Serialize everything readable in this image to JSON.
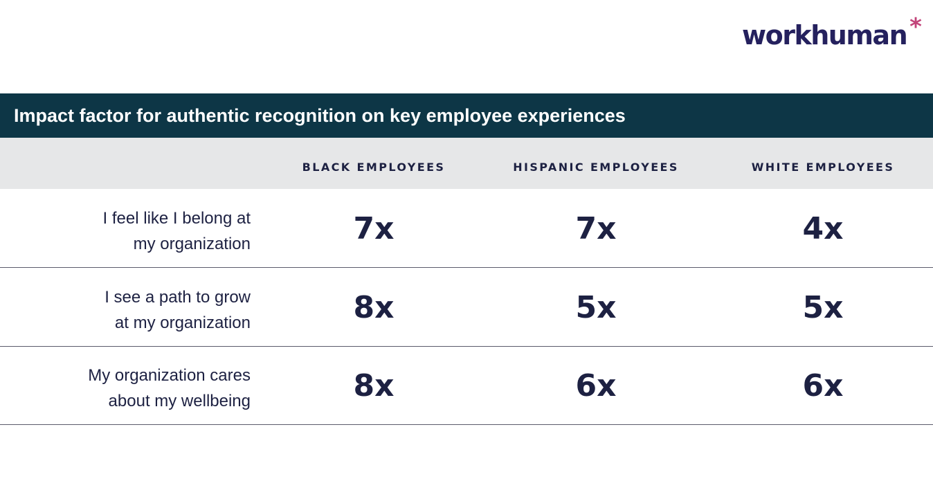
{
  "logo": {
    "text": "workhuman",
    "mark": "*",
    "brand_color": "#25215e",
    "accent_color": "#c2447a"
  },
  "chart_data": {
    "type": "table",
    "title": "Impact factor for authentic recognition on key employee experiences",
    "columns": [
      "BLACK EMPLOYEES",
      "HISPANIC EMPLOYEES",
      "WHITE EMPLOYEES"
    ],
    "rows": [
      {
        "label_lines": [
          "I feel like I belong at",
          "my organization"
        ],
        "values": [
          "7x",
          "7x",
          "4x"
        ]
      },
      {
        "label_lines": [
          "I see a path to grow",
          "at my organization"
        ],
        "values": [
          "8x",
          "5x",
          "5x"
        ]
      },
      {
        "label_lines": [
          "My organization cares",
          "about my wellbeing"
        ],
        "values": [
          "8x",
          "6x",
          "6x"
        ]
      }
    ],
    "colors": {
      "title_bar": "#0d3646",
      "header_row": "#e6e7e8",
      "text": "#1d2142"
    }
  }
}
